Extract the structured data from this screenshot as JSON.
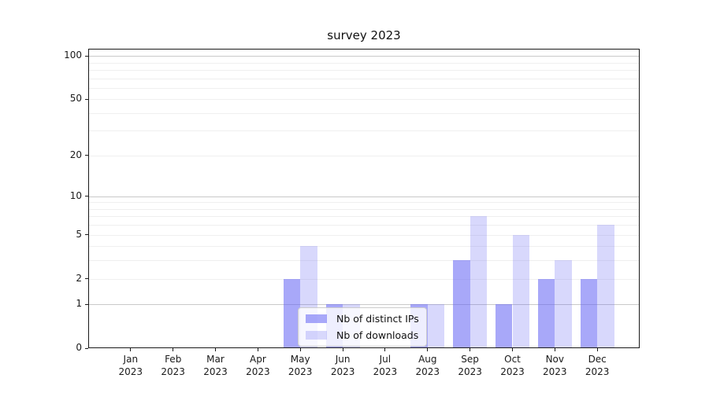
{
  "figure": {
    "title": "survey 2023"
  },
  "chart_data": {
    "type": "bar",
    "title": "survey 2023",
    "categories": [
      "Jan",
      "Feb",
      "Mar",
      "Apr",
      "May",
      "Jun",
      "Jul",
      "Aug",
      "Sep",
      "Oct",
      "Nov",
      "Dec"
    ],
    "category_year": "2023",
    "series": [
      {
        "name": "Nb of distinct IPs",
        "values": [
          0,
          0,
          0,
          0,
          2,
          1,
          0,
          1,
          3,
          1,
          2,
          2
        ],
        "color": "rgba(100,100,245,0.56)"
      },
      {
        "name": "Nb of downloads",
        "values": [
          0,
          0,
          0,
          0,
          4,
          1,
          0,
          1,
          7,
          5,
          3,
          6
        ],
        "color": "rgba(100,100,245,0.25)"
      }
    ],
    "xlabel": "",
    "ylabel": "",
    "yscale": "log1p",
    "ylim": [
      0,
      112
    ],
    "yticks": [
      0,
      1,
      2,
      5,
      10,
      20,
      50,
      100
    ],
    "grid": true,
    "legend_position": "lower-center-inside"
  },
  "colors": {
    "major_grid": "#c9c9c9",
    "minor_grid": "#efefef",
    "spine": "#1a1a1a",
    "text": "#1a1a1a",
    "legend_border": "#cccccc",
    "bar_dark": "rgba(100,100,245,0.56)",
    "bar_light": "rgba(100,100,245,0.25)"
  }
}
